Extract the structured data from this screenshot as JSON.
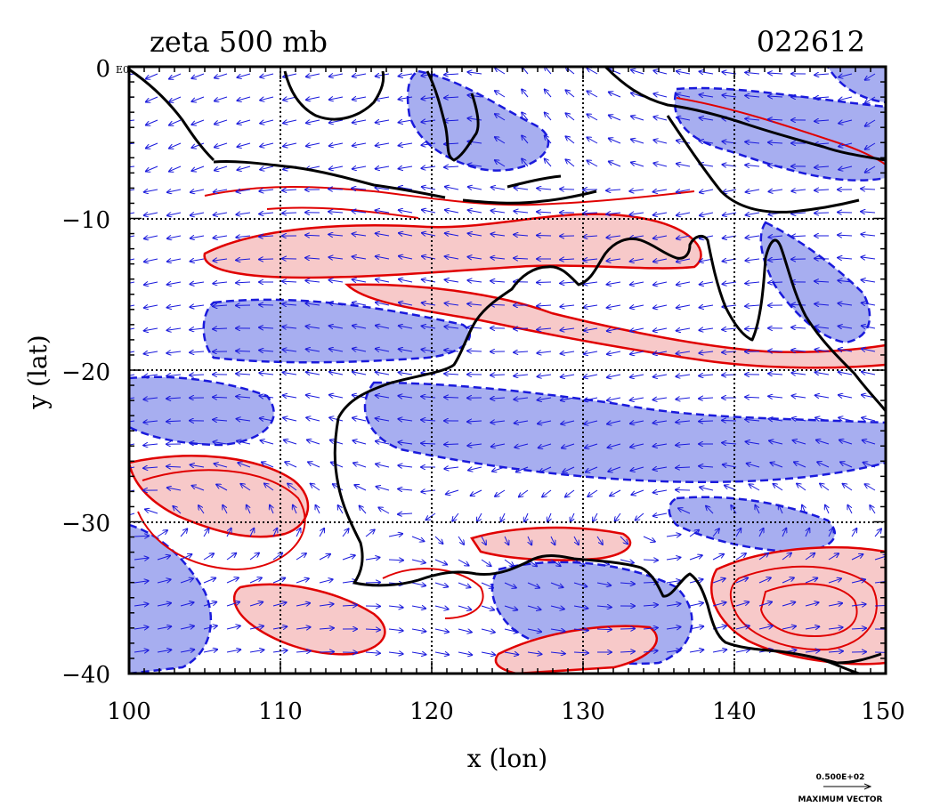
{
  "title_left": "zeta 500 mb",
  "title_right": "022612",
  "xlabel": "x (lon)",
  "ylabel": "y (lat)",
  "x_ticks": [
    "100",
    "110",
    "120",
    "130",
    "140",
    "150"
  ],
  "y_ticks": [
    "0",
    "−10",
    "−20",
    "−30",
    "−40"
  ],
  "origin_tag": "E0",
  "vector_legend": {
    "value": "0.500E+02",
    "label": "MAXIMUM VECTOR"
  },
  "colors": {
    "positive_fill": "#f7c9c9",
    "positive_contour": "#e00000",
    "negative_fill": "#a7aef0",
    "negative_contour": "#1a1adc",
    "wind_vector": "#1a1adc",
    "coastline": "#000000"
  },
  "map_data": {
    "type": "contour-vector-map",
    "variable": "zeta 500 mb",
    "lon_range": [
      100,
      150
    ],
    "lat_range": [
      -40,
      0
    ],
    "gridlines_lon": [
      110,
      120,
      130,
      140
    ],
    "gridlines_lat": [
      -10,
      -20,
      -30
    ],
    "gridline_style": "dotted"
  }
}
